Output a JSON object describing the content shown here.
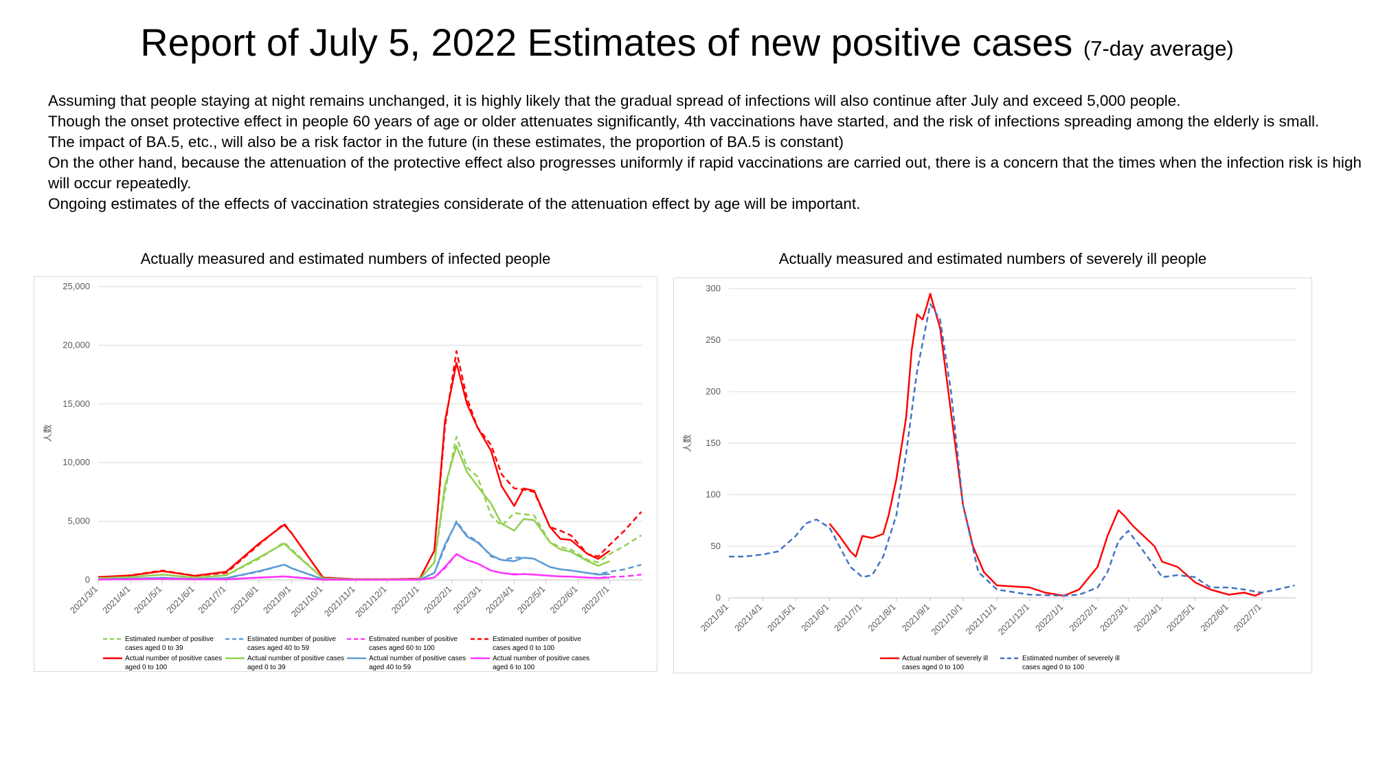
{
  "header": {
    "title": "Report of July 5,  2022 Estimates of new positive cases",
    "title_suffix": "(7-day average)"
  },
  "paragraphs": [
    "Assuming that people staying at night remains unchanged, it is highly likely that the gradual spread of infections will also continue after July and exceed 5,000 people.",
    "Though the onset protective effect in people 60 years of age or older attenuates significantly, 4th vaccinations have started, and the risk of infections spreading among the elderly is small.",
    "The impact of BA.5, etc., will also be a risk factor in the future (in these estimates, the proportion of BA.5 is constant)",
    "On the other hand, because the attenuation of the protective effect also progresses uniformly if rapid vaccinations are carried out, there is a concern that the times when the infection risk is high will occur repeatedly.",
    "Ongoing estimates of the effects of vaccination strategies considerate of the attenuation effect by age will be important."
  ],
  "colors": {
    "red": "#ff0000",
    "green": "#92d050",
    "blue": "#5b9bd5",
    "magenta": "#ff33ff",
    "dark_blue": "#4472c4",
    "grid": "#d9d9d9",
    "axis_text": "#595959"
  },
  "chart_data": [
    {
      "type": "line",
      "title": "Actually measured and estimated numbers of infected people",
      "ylabel": "人数",
      "ylim": [
        0,
        25000
      ],
      "y_ticks": [
        0,
        5000,
        10000,
        15000,
        20000,
        25000
      ],
      "y_tick_labels": [
        "0",
        "5,000",
        "10,000",
        "15,000",
        "20,000",
        "25,000"
      ],
      "x_tick_labels": [
        "2021/3/1",
        "2021/4/1",
        "2021/5/1",
        "2021/6/1",
        "2021/7/1",
        "2021/8/1",
        "2021/9/1",
        "2021/10/1",
        "2021/11/1",
        "2021/12/1",
        "2022/1/1",
        "2022/2/1",
        "2022/3/1",
        "2022/4/1",
        "2022/5/1",
        "2022/6/1",
        "2022/7/1"
      ],
      "x_range": [
        "2021/3/1",
        "2022/8/1"
      ],
      "grid": true,
      "legend_position": "bottom",
      "series": [
        {
          "name": "Estimated number of positive cases aged 0 to 39",
          "color": "#92d050",
          "dash": true,
          "x": [
            "2021/3/1",
            "2021/4/1",
            "2021/5/1",
            "2021/6/1",
            "2021/7/1",
            "2021/8/1",
            "2021/8/25",
            "2021/9/1",
            "2021/10/1",
            "2021/11/1",
            "2021/12/1",
            "2022/1/1",
            "2022/1/15",
            "2022/1/25",
            "2022/2/5",
            "2022/2/15",
            "2022/2/25",
            "2022/3/10",
            "2022/3/20",
            "2022/4/1",
            "2022/4/10",
            "2022/4/20",
            "2022/5/5",
            "2022/5/15",
            "2022/5/25",
            "2022/6/10",
            "2022/6/20",
            "2022/7/1",
            "2022/7/15",
            "2022/7/31"
          ],
          "y": [
            100,
            250,
            450,
            200,
            400,
            1800,
            3200,
            2600,
            120,
            40,
            40,
            60,
            1500,
            7500,
            12200,
            9600,
            8800,
            5500,
            4600,
            5700,
            5600,
            5500,
            3200,
            2800,
            2600,
            1700,
            1500,
            2200,
            2900,
            3800
          ]
        },
        {
          "name": "Estimated number of positive cases aged 40 to 59",
          "color": "#5b9bd5",
          "dash": true,
          "x": [
            "2021/3/1",
            "2021/4/1",
            "2021/5/1",
            "2021/6/1",
            "2021/7/1",
            "2021/8/1",
            "2021/8/25",
            "2021/9/1",
            "2021/10/1",
            "2021/11/1",
            "2021/12/1",
            "2022/1/1",
            "2022/1/15",
            "2022/1/25",
            "2022/2/5",
            "2022/2/15",
            "2022/2/25",
            "2022/3/10",
            "2022/3/20",
            "2022/4/1",
            "2022/4/10",
            "2022/4/20",
            "2022/5/5",
            "2022/5/15",
            "2022/5/25",
            "2022/6/10",
            "2022/6/20",
            "2022/7/1",
            "2022/7/15",
            "2022/7/31"
          ],
          "y": [
            50,
            100,
            180,
            80,
            150,
            700,
            1300,
            1000,
            50,
            20,
            20,
            30,
            600,
            2800,
            5000,
            3800,
            3300,
            2000,
            1700,
            1900,
            1900,
            1800,
            1100,
            900,
            800,
            600,
            500,
            700,
            900,
            1300
          ]
        },
        {
          "name": "Estimated number of positive cases aged 60 to 100",
          "color": "#ff33ff",
          "dash": true,
          "x": [
            "2021/3/1",
            "2021/4/1",
            "2021/5/1",
            "2021/6/1",
            "2021/7/1",
            "2021/8/1",
            "2021/8/25",
            "2021/9/1",
            "2021/10/1",
            "2021/11/1",
            "2021/12/1",
            "2022/1/1",
            "2022/1/15",
            "2022/1/25",
            "2022/2/5",
            "2022/2/15",
            "2022/2/25",
            "2022/3/10",
            "2022/3/20",
            "2022/4/1",
            "2022/4/10",
            "2022/4/20",
            "2022/5/5",
            "2022/5/15",
            "2022/5/25",
            "2022/6/10",
            "2022/6/20",
            "2022/7/1",
            "2022/7/15",
            "2022/7/31"
          ],
          "y": [
            30,
            60,
            100,
            50,
            60,
            200,
            300,
            250,
            20,
            10,
            10,
            15,
            200,
            1000,
            2200,
            1700,
            1400,
            800,
            600,
            500,
            500,
            450,
            350,
            300,
            280,
            200,
            180,
            250,
            300,
            450
          ]
        },
        {
          "name": "Estimated number of positive cases aged 0 to 100",
          "color": "#ff0000",
          "dash": true,
          "x": [
            "2021/3/1",
            "2021/4/1",
            "2021/5/1",
            "2021/6/1",
            "2021/7/1",
            "2021/8/1",
            "2021/8/25",
            "2021/9/1",
            "2021/10/1",
            "2021/11/1",
            "2021/12/1",
            "2022/1/1",
            "2022/1/15",
            "2022/1/25",
            "2022/2/5",
            "2022/2/15",
            "2022/2/25",
            "2022/3/10",
            "2022/3/20",
            "2022/4/1",
            "2022/4/10",
            "2022/4/20",
            "2022/5/5",
            "2022/5/15",
            "2022/5/25",
            "2022/6/10",
            "2022/6/20",
            "2022/7/1",
            "2022/7/15",
            "2022/7/31"
          ],
          "y": [
            200,
            400,
            800,
            350,
            600,
            3000,
            4800,
            4000,
            200,
            60,
            60,
            100,
            2500,
            13000,
            19500,
            15500,
            13000,
            11500,
            9000,
            7800,
            7700,
            7500,
            4500,
            4200,
            3800,
            2200,
            2000,
            3000,
            4200,
            5800
          ]
        },
        {
          "name": "Actual number of positive cases aged 0 to 100",
          "color": "#ff0000",
          "dash": false,
          "x": [
            "2021/3/1",
            "2021/4/1",
            "2021/5/1",
            "2021/6/1",
            "2021/7/1",
            "2021/8/1",
            "2021/8/25",
            "2021/9/1",
            "2021/10/1",
            "2021/11/1",
            "2021/12/1",
            "2022/1/1",
            "2022/1/15",
            "2022/1/25",
            "2022/2/5",
            "2022/2/15",
            "2022/2/25",
            "2022/3/10",
            "2022/3/20",
            "2022/4/1",
            "2022/4/10",
            "2022/4/20",
            "2022/5/5",
            "2022/5/15",
            "2022/5/25",
            "2022/6/10",
            "2022/6/20",
            "2022/7/1"
          ],
          "y": [
            250,
            380,
            750,
            350,
            700,
            3100,
            4700,
            4000,
            200,
            60,
            60,
            100,
            2500,
            13500,
            18500,
            15000,
            13000,
            11000,
            8000,
            6300,
            7800,
            7600,
            4500,
            3500,
            3400,
            2200,
            1800,
            2500
          ]
        },
        {
          "name": "Actual number of positive cases aged 0 to 39",
          "color": "#92d050",
          "dash": false,
          "x": [
            "2021/3/1",
            "2021/4/1",
            "2021/5/1",
            "2021/6/1",
            "2021/7/1",
            "2021/8/1",
            "2021/8/25",
            "2021/9/1",
            "2021/10/1",
            "2021/11/1",
            "2021/12/1",
            "2022/1/1",
            "2022/1/15",
            "2022/1/25",
            "2022/2/5",
            "2022/2/15",
            "2022/2/25",
            "2022/3/10",
            "2022/3/20",
            "2022/4/1",
            "2022/4/10",
            "2022/4/20",
            "2022/5/5",
            "2022/5/15",
            "2022/5/25",
            "2022/6/10",
            "2022/6/20",
            "2022/7/1"
          ],
          "y": [
            150,
            250,
            450,
            200,
            400,
            1900,
            3100,
            2500,
            120,
            40,
            40,
            60,
            1500,
            8000,
            11400,
            9200,
            8000,
            6500,
            4800,
            4200,
            5200,
            5100,
            3200,
            2600,
            2400,
            1600,
            1200,
            1600
          ]
        },
        {
          "name": "Actual number of positive cases aged 40 to 59",
          "color": "#5b9bd5",
          "dash": false,
          "x": [
            "2021/3/1",
            "2021/4/1",
            "2021/5/1",
            "2021/6/1",
            "2021/7/1",
            "2021/8/1",
            "2021/8/25",
            "2021/9/1",
            "2021/10/1",
            "2021/11/1",
            "2021/12/1",
            "2022/1/1",
            "2022/1/15",
            "2022/1/25",
            "2022/2/5",
            "2022/2/15",
            "2022/2/25",
            "2022/3/10",
            "2022/3/20",
            "2022/4/1",
            "2022/4/10",
            "2022/4/20",
            "2022/5/5",
            "2022/5/15",
            "2022/5/25",
            "2022/6/10",
            "2022/6/20",
            "2022/7/1"
          ],
          "y": [
            60,
            110,
            180,
            80,
            150,
            750,
            1300,
            1000,
            50,
            20,
            20,
            30,
            600,
            3000,
            4900,
            3700,
            3200,
            2100,
            1700,
            1600,
            1900,
            1800,
            1100,
            900,
            800,
            600,
            450,
            500
          ]
        },
        {
          "name": "Actual number of positive cases aged 6 to 100",
          "color": "#ff33ff",
          "dash": false,
          "x": [
            "2021/3/1",
            "2021/4/1",
            "2021/5/1",
            "2021/6/1",
            "2021/7/1",
            "2021/8/1",
            "2021/8/25",
            "2021/9/1",
            "2021/10/1",
            "2021/11/1",
            "2021/12/1",
            "2022/1/1",
            "2022/1/15",
            "2022/1/25",
            "2022/2/5",
            "2022/2/15",
            "2022/2/25",
            "2022/3/10",
            "2022/3/20",
            "2022/4/1",
            "2022/4/10",
            "2022/4/20",
            "2022/5/5",
            "2022/5/15",
            "2022/5/25",
            "2022/6/10",
            "2022/6/20",
            "2022/7/1"
          ],
          "y": [
            40,
            60,
            100,
            50,
            60,
            200,
            300,
            250,
            20,
            10,
            10,
            15,
            200,
            1100,
            2200,
            1700,
            1400,
            800,
            600,
            450,
            500,
            450,
            350,
            300,
            280,
            200,
            150,
            200
          ]
        }
      ],
      "legend": [
        {
          "label": "Estimated number of positive cases aged 0 to 39",
          "color": "#92d050",
          "dash": true
        },
        {
          "label": "Estimated number of positive cases aged 40 to 59",
          "color": "#5b9bd5",
          "dash": true
        },
        {
          "label": "Estimated number of positive cases aged 60 to 100",
          "color": "#ff33ff",
          "dash": true
        },
        {
          "label": "Estimated number of positive cases aged 0 to 100",
          "color": "#ff0000",
          "dash": true
        },
        {
          "label": "Actual number of positive cases aged 0 to 100",
          "color": "#ff0000",
          "dash": false
        },
        {
          "label": "Actual number of positive cases aged 0 to 39",
          "color": "#92d050",
          "dash": false
        },
        {
          "label": "Actual number of positive cases aged 40 to 59",
          "color": "#5b9bd5",
          "dash": false
        },
        {
          "label": "Actual number of positive cases aged 6 to 100",
          "color": "#ff33ff",
          "dash": false
        }
      ]
    },
    {
      "type": "line",
      "title": "Actually measured and estimated numbers of severely ill people",
      "ylabel": "人数",
      "ylim": [
        0,
        300
      ],
      "y_ticks": [
        0,
        50,
        100,
        150,
        200,
        250,
        300
      ],
      "y_tick_labels": [
        "0",
        "50",
        "100",
        "150",
        "200",
        "250",
        "300"
      ],
      "x_tick_labels": [
        "2021/3/1",
        "2021/4/1",
        "2021/5/1",
        "2021/6/1",
        "2021/7/1",
        "2021/8/1",
        "2021/9/1",
        "2021/10/1",
        "2021/11/1",
        "2021/12/1",
        "2022/1/1",
        "2022/2/1",
        "2022/3/1",
        "2022/4/1",
        "2022/5/1",
        "2022/6/1",
        "2022/7/1"
      ],
      "x_range": [
        "2021/3/1",
        "2022/8/1"
      ],
      "grid": true,
      "legend_position": "bottom",
      "series": [
        {
          "name": "Actual number of severely ill cases aged 0 to 100",
          "color": "#ff0000",
          "dash": false,
          "x": [
            "2021/6/1",
            "2021/6/10",
            "2021/6/20",
            "2021/6/25",
            "2021/7/1",
            "2021/7/10",
            "2021/7/20",
            "2021/7/25",
            "2021/8/1",
            "2021/8/10",
            "2021/8/15",
            "2021/8/20",
            "2021/8/25",
            "2021/8/28",
            "2021/9/1",
            "2021/9/5",
            "2021/9/10",
            "2021/9/20",
            "2021/10/1",
            "2021/10/10",
            "2021/10/20",
            "2021/11/1",
            "2021/12/1",
            "2021/12/15",
            "2022/1/1",
            "2022/1/15",
            "2022/2/1",
            "2022/2/10",
            "2022/2/20",
            "2022/2/25",
            "2022/3/5",
            "2022/3/15",
            "2022/3/25",
            "2022/4/1",
            "2022/4/15",
            "2022/5/1",
            "2022/5/15",
            "2022/6/1",
            "2022/6/15",
            "2022/6/25",
            "2022/7/1"
          ],
          "y": [
            72,
            60,
            45,
            40,
            60,
            58,
            62,
            80,
            115,
            175,
            240,
            275,
            270,
            280,
            295,
            280,
            262,
            180,
            90,
            50,
            25,
            12,
            10,
            5,
            2,
            8,
            30,
            60,
            85,
            80,
            70,
            60,
            50,
            35,
            30,
            15,
            8,
            3,
            5,
            2,
            5
          ]
        },
        {
          "name": "Estimated number of severely ill cases aged 0 to 100",
          "color": "#4472c4",
          "dash": true,
          "x": [
            "2021/3/1",
            "2021/3/15",
            "2021/4/1",
            "2021/4/15",
            "2021/5/1",
            "2021/5/10",
            "2021/5/20",
            "2021/6/1",
            "2021/6/10",
            "2021/6/20",
            "2021/7/1",
            "2021/7/10",
            "2021/7/20",
            "2021/8/1",
            "2021/8/10",
            "2021/8/20",
            "2021/9/1",
            "2021/9/10",
            "2021/9/20",
            "2021/10/1",
            "2021/10/15",
            "2021/11/1",
            "2021/12/1",
            "2022/1/1",
            "2022/1/15",
            "2022/2/1",
            "2022/2/10",
            "2022/2/20",
            "2022/3/1",
            "2022/3/15",
            "2022/4/1",
            "2022/4/15",
            "2022/5/1",
            "2022/5/15",
            "2022/6/1",
            "2022/6/15",
            "2022/7/1",
            "2022/7/15",
            "2022/7/31"
          ],
          "y": [
            40,
            40,
            42,
            45,
            60,
            72,
            76,
            68,
            50,
            30,
            20,
            22,
            40,
            80,
            140,
            220,
            285,
            270,
            200,
            90,
            25,
            8,
            3,
            2,
            3,
            10,
            25,
            55,
            65,
            45,
            20,
            22,
            20,
            10,
            10,
            8,
            5,
            8,
            12
          ]
        }
      ],
      "legend": [
        {
          "label": "Actual number of severely ill cases aged 0 to 100",
          "color": "#ff0000",
          "dash": false
        },
        {
          "label": "Estimated number of severely ill cases aged 0 to 100",
          "color": "#4472c4",
          "dash": true
        }
      ]
    }
  ]
}
